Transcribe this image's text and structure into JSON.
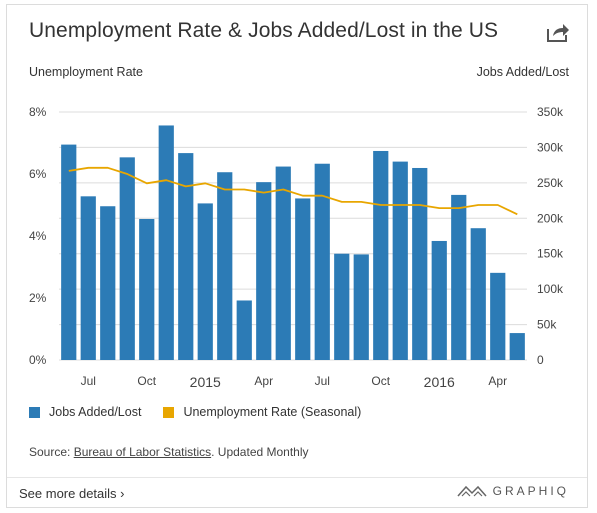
{
  "header": {
    "title": "Unemployment Rate & Jobs Added/Lost in the US",
    "share_icon": "share-icon"
  },
  "axes": {
    "left_title": "Unemployment Rate",
    "right_title": "Jobs Added/Lost"
  },
  "legend": {
    "jobs_label": "Jobs Added/Lost",
    "rate_label": "Unemployment Rate (Seasonal)"
  },
  "source": {
    "prefix": "Source: ",
    "link_text": "Bureau of Labor Statistics",
    "suffix": ". Updated Monthly"
  },
  "footer": {
    "more_label": "See more details ›",
    "brand": "GRAPHIQ"
  },
  "colors": {
    "bar": "#2c7bb6",
    "line": "#e8a600",
    "grid": "#dcdcdc",
    "text": "#333333"
  },
  "chart_data": {
    "type": "bar",
    "x_labels": [
      "",
      "Jul",
      "",
      "",
      "Oct",
      "",
      "",
      "2015",
      "",
      "",
      "Apr",
      "",
      "",
      "Jul",
      "",
      "",
      "Oct",
      "",
      "",
      "2016",
      "",
      "",
      "Apr",
      ""
    ],
    "series": [
      {
        "name": "Jobs Added/Lost",
        "axis": "right",
        "type": "bar",
        "values": [
          304000,
          231000,
          217000,
          286000,
          199000,
          331000,
          292000,
          221000,
          265000,
          84000,
          251000,
          273000,
          228000,
          277000,
          150000,
          149000,
          295000,
          280000,
          271000,
          168000,
          233000,
          186000,
          123000,
          38000
        ]
      },
      {
        "name": "Unemployment Rate (Seasonal)",
        "axis": "left",
        "type": "line",
        "values": [
          6.1,
          6.2,
          6.2,
          6.0,
          5.7,
          5.8,
          5.6,
          5.7,
          5.5,
          5.5,
          5.4,
          5.5,
          5.3,
          5.3,
          5.1,
          5.1,
          5.0,
          5.0,
          5.0,
          4.9,
          4.9,
          5.0,
          5.0,
          4.7
        ]
      }
    ],
    "left_axis": {
      "ticks": [
        "0%",
        "2%",
        "4%",
        "6%",
        "8%"
      ],
      "ylim": [
        0,
        8
      ]
    },
    "right_axis": {
      "ticks": [
        "0",
        "50k",
        "100k",
        "150k",
        "200k",
        "250k",
        "300k",
        "350k"
      ],
      "ylim": [
        0,
        350000
      ]
    },
    "grid": "horizontal",
    "legend_position": "bottom-left"
  }
}
